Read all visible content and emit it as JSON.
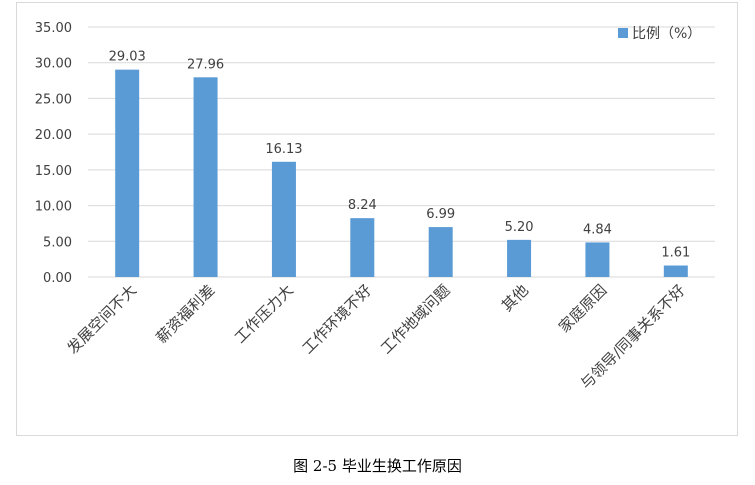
{
  "chart_data": {
    "type": "bar",
    "categories": [
      "发展空间不大",
      "薪资福利差",
      "工作压力大",
      "工作环境不好",
      "工作地域问题",
      "其他",
      "家庭原因",
      "与领导/同事关系不好"
    ],
    "series": [
      {
        "name": "比例（%）",
        "values": [
          29.03,
          27.96,
          16.13,
          8.24,
          6.99,
          5.2,
          4.84,
          1.61
        ]
      }
    ],
    "data_labels": [
      "29.03",
      "27.96",
      "16.13",
      "8.24",
      "6.99",
      "5.20",
      "4.84",
      "1.61"
    ],
    "y_ticks": [
      "0.00",
      "5.00",
      "10.00",
      "15.00",
      "20.00",
      "25.00",
      "30.00",
      "35.00"
    ],
    "ylim": [
      0,
      35
    ],
    "grid": true,
    "legend_position": "top-right",
    "bar_color": "#5b9bd5",
    "grid_color": "#d9d9d9"
  },
  "caption": "图 2-5 毕业生换工作原因"
}
